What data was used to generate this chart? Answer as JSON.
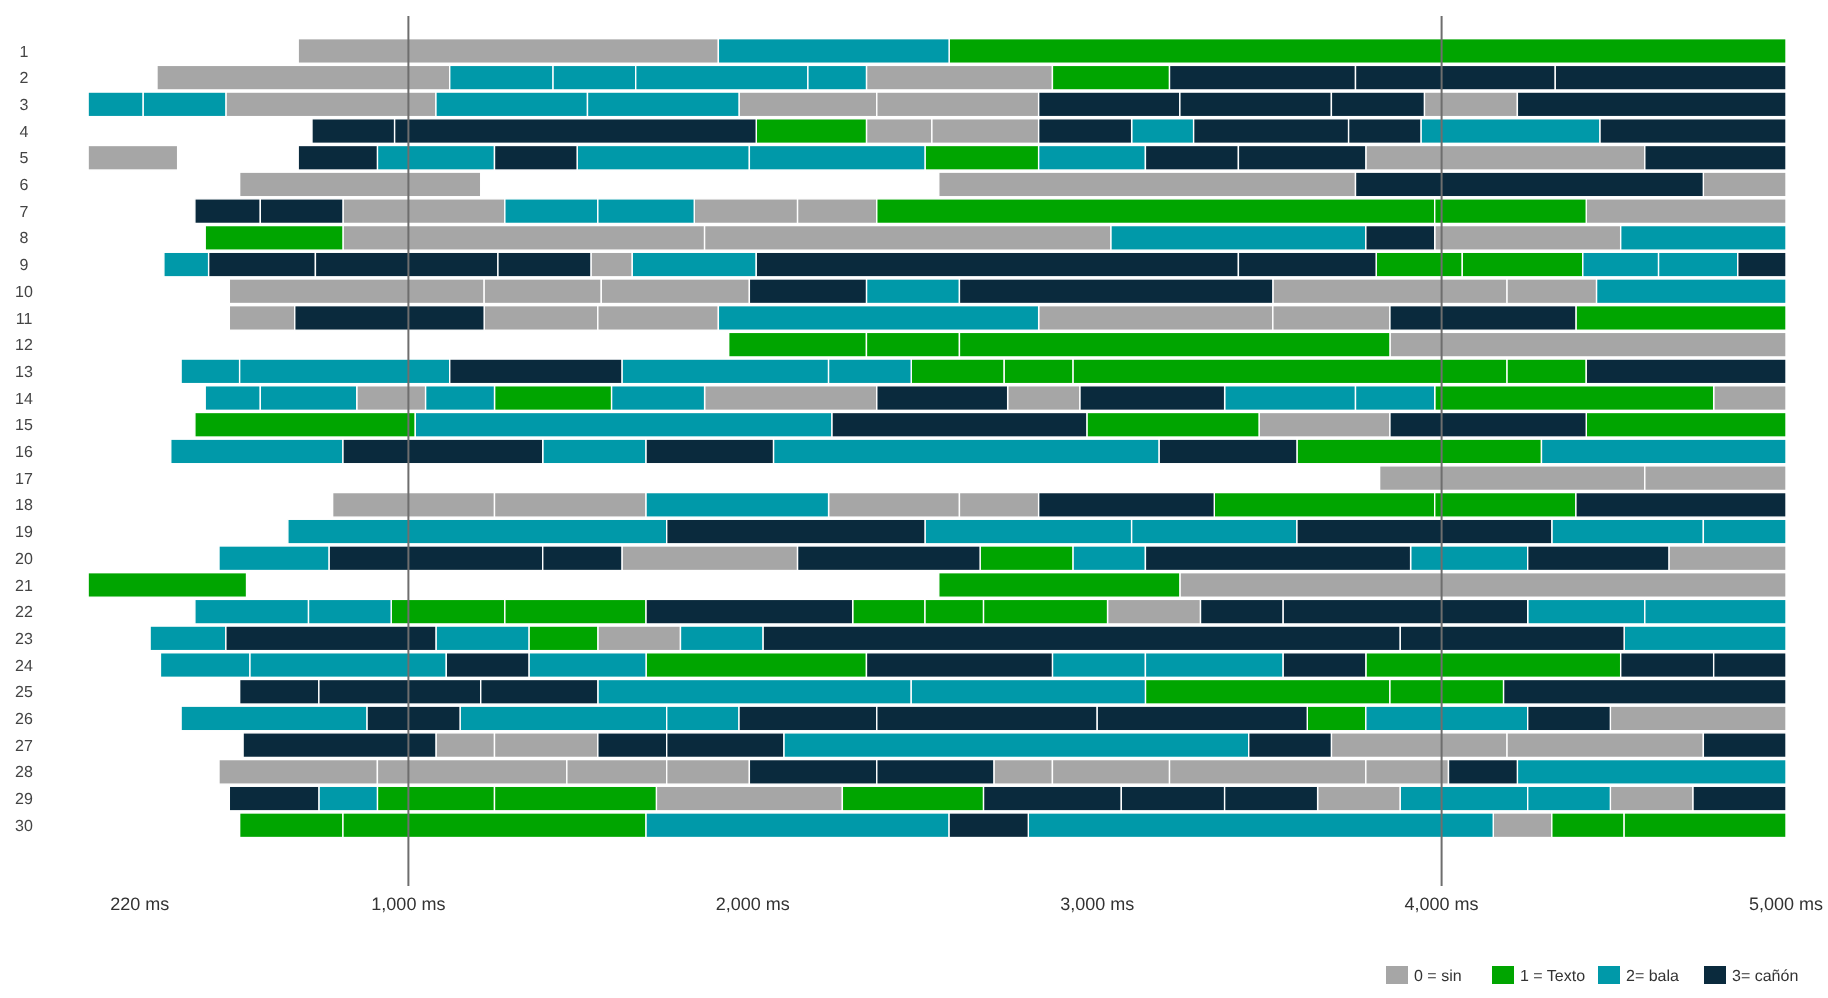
{
  "chart_data": {
    "type": "bar",
    "orientation": "horizontal",
    "categories": [
      "1",
      "2",
      "3",
      "4",
      "5",
      "6",
      "7",
      "8",
      "9",
      "10",
      "11",
      "12",
      "13",
      "14",
      "15",
      "16",
      "17",
      "18",
      "19",
      "20",
      "21",
      "22",
      "23",
      "24",
      "25",
      "26",
      "27",
      "28",
      "29",
      "30"
    ],
    "xlim": [
      0,
      5000
    ],
    "xticks": [
      {
        "value": 220,
        "label": "220 ms"
      },
      {
        "value": 1000,
        "label": "1,000 ms"
      },
      {
        "value": 2000,
        "label": "2,000 ms"
      },
      {
        "value": 3000,
        "label": "3,000 ms"
      },
      {
        "value": 4000,
        "label": "4,000 ms"
      },
      {
        "value": 5000,
        "label": "5,000 ms"
      }
    ],
    "legend": "bottom right",
    "ref_lines": [
      {
        "axis": "x",
        "value": 1000,
        "color": "#6e6e6e"
      },
      {
        "axis": "x",
        "value": 4000,
        "color": "#6e6e6e"
      }
    ],
    "series": [
      {
        "name": "0 = sin",
        "color": "#a6a6a6",
        "base": [
          680,
          270,
          470,
          2330,
          70,
          510,
          810,
          810,
          1530,
          480,
          480,
          3850,
          null,
          850,
          3470,
          null,
          3820,
          780,
          null,
          1620,
          3240,
          3030,
          1550,
          null,
          null,
          4490,
          1080,
          450,
          1720,
          4150
        ],
        "values": [
          1220,
          850,
          610,
          190,
          260,
          700,
          470,
          1050,
          120,
          740,
          190,
          1150,
          null,
          200,
          380,
          null,
          770,
          470,
          null,
          510,
          1760,
          270,
          240,
          null,
          null,
          510,
          170,
          460,
          540,
          170
        ]
      },
      {
        "color": "#a6a6a6",
        "base": [
          null,
          2330,
          1960,
          2520,
          3780,
          2540,
          1830,
          1860,
          null,
          1220,
          1220,
          null,
          null,
          1860,
          null,
          null,
          4590,
          1250,
          null,
          4660,
          null,
          null,
          null,
          null,
          null,
          null,
          1250,
          910,
          3640,
          null
        ],
        "values": [
          null,
          540,
          400,
          310,
          810,
          1210,
          300,
          1180,
          null,
          340,
          330,
          null,
          null,
          500,
          null,
          null,
          410,
          440,
          null,
          340,
          null,
          null,
          null,
          null,
          null,
          null,
          300,
          550,
          240,
          null
        ]
      },
      {
        "color": "#a6a6a6",
        "base": [
          null,
          null,
          2360,
          null,
          null,
          4760,
          2130,
          3980,
          null,
          1560,
          1550,
          null,
          null,
          2740,
          null,
          null,
          null,
          2220,
          null,
          null,
          null,
          null,
          null,
          null,
          null,
          null,
          3680,
          1460,
          4490,
          null
        ],
        "values": [
          null,
          null,
          470,
          null,
          null,
          240,
          230,
          540,
          null,
          430,
          350,
          null,
          null,
          210,
          null,
          null,
          null,
          380,
          null,
          null,
          null,
          null,
          null,
          null,
          null,
          null,
          510,
          290,
          240,
          null
        ]
      },
      {
        "color": "#a6a6a6",
        "base": [
          null,
          null,
          3950,
          null,
          null,
          null,
          4420,
          null,
          null,
          3510,
          2830,
          null,
          null,
          4790,
          null,
          null,
          null,
          2600,
          null,
          null,
          null,
          null,
          null,
          null,
          null,
          null,
          4190,
          1750,
          null,
          null
        ],
        "values": [
          null,
          null,
          270,
          null,
          null,
          null,
          580,
          null,
          null,
          680,
          680,
          null,
          null,
          210,
          null,
          null,
          null,
          230,
          null,
          null,
          null,
          null,
          null,
          null,
          null,
          null,
          570,
          240,
          null,
          null
        ]
      },
      {
        "color": "#a6a6a6",
        "base": [
          null,
          null,
          null,
          null,
          null,
          null,
          null,
          null,
          null,
          4190,
          3510,
          null,
          null,
          null,
          null,
          null,
          null,
          null,
          null,
          null,
          null,
          null,
          null,
          null,
          null,
          null,
          null,
          2700,
          null,
          null
        ],
        "values": [
          null,
          null,
          null,
          null,
          null,
          null,
          null,
          null,
          null,
          260,
          340,
          null,
          null,
          null,
          null,
          null,
          null,
          null,
          null,
          null,
          null,
          null,
          null,
          null,
          null,
          null,
          null,
          170,
          null,
          null
        ]
      },
      {
        "color": "#a6a6a6",
        "base": [
          null,
          null,
          null,
          null,
          null,
          null,
          null,
          null,
          null,
          null,
          null,
          null,
          null,
          null,
          null,
          null,
          null,
          null,
          null,
          null,
          null,
          null,
          null,
          null,
          null,
          null,
          null,
          2870,
          null,
          null
        ],
        "values": [
          null,
          null,
          null,
          null,
          null,
          null,
          null,
          null,
          null,
          null,
          null,
          null,
          null,
          null,
          null,
          null,
          null,
          null,
          null,
          null,
          null,
          null,
          null,
          null,
          null,
          null,
          null,
          340,
          null,
          null
        ]
      },
      {
        "color": "#a6a6a6",
        "base": [
          null,
          null,
          null,
          null,
          null,
          null,
          null,
          null,
          null,
          null,
          null,
          null,
          null,
          null,
          null,
          null,
          null,
          null,
          null,
          null,
          null,
          null,
          null,
          null,
          null,
          null,
          null,
          3210,
          null,
          null
        ],
        "values": [
          null,
          null,
          null,
          null,
          null,
          null,
          null,
          null,
          null,
          null,
          null,
          null,
          null,
          null,
          null,
          null,
          null,
          null,
          null,
          null,
          null,
          null,
          null,
          null,
          null,
          null,
          null,
          570,
          null,
          null
        ]
      },
      {
        "color": "#a6a6a6",
        "base": [
          null,
          null,
          null,
          null,
          null,
          null,
          null,
          null,
          null,
          null,
          null,
          null,
          null,
          null,
          null,
          null,
          null,
          null,
          null,
          null,
          null,
          null,
          null,
          null,
          null,
          null,
          null,
          3780,
          null,
          null
        ],
        "values": [
          null,
          null,
          null,
          null,
          null,
          null,
          null,
          null,
          null,
          null,
          null,
          null,
          null,
          null,
          null,
          null,
          null,
          null,
          null,
          null,
          null,
          null,
          null,
          null,
          null,
          null,
          null,
          240,
          null,
          null
        ]
      },
      {
        "name": "1 = Texto",
        "color": "#00a500",
        "base": [
          2570,
          2870,
          null,
          2010,
          2500,
          null,
          2360,
          410,
          3810,
          null,
          4390,
          1930,
          2460,
          1250,
          380,
          3580,
          null,
          3340,
          null,
          2660,
          70,
          950,
          1350,
          1690,
          3140,
          3610,
          null,
          null,
          910,
          510
        ],
        "values": [
          2430,
          340,
          null,
          320,
          330,
          null,
          1620,
          400,
          250,
          null,
          610,
          400,
          270,
          340,
          640,
          710,
          null,
          640,
          null,
          270,
          460,
          330,
          200,
          640,
          710,
          170,
          null,
          null,
          340,
          300
        ]
      },
      {
        "color": "#00a500",
        "base": [
          null,
          null,
          null,
          null,
          null,
          null,
          3980,
          null,
          4060,
          null,
          null,
          2330,
          2730,
          3980,
          2970,
          null,
          null,
          3980,
          null,
          null,
          2540,
          1280,
          null,
          3780,
          3850,
          null,
          null,
          null,
          1250,
          810
        ],
        "values": [
          null,
          null,
          null,
          null,
          null,
          null,
          440,
          null,
          350,
          null,
          null,
          270,
          200,
          810,
          500,
          null,
          null,
          410,
          null,
          null,
          700,
          410,
          null,
          740,
          330,
          null,
          null,
          null,
          470,
          880
        ]
      },
      {
        "color": "#00a500",
        "base": [
          null,
          null,
          null,
          null,
          null,
          null,
          null,
          null,
          null,
          null,
          null,
          2600,
          2930,
          null,
          4420,
          null,
          null,
          null,
          null,
          null,
          null,
          2290,
          null,
          null,
          null,
          null,
          null,
          null,
          2260,
          4320
        ],
        "values": [
          null,
          null,
          null,
          null,
          null,
          null,
          null,
          null,
          null,
          null,
          null,
          1250,
          1260,
          null,
          580,
          null,
          null,
          null,
          null,
          null,
          null,
          210,
          null,
          null,
          null,
          null,
          null,
          null,
          410,
          210
        ]
      },
      {
        "color": "#00a500",
        "base": [
          null,
          null,
          null,
          null,
          null,
          null,
          null,
          null,
          null,
          null,
          null,
          null,
          4190,
          null,
          null,
          null,
          null,
          null,
          null,
          null,
          null,
          2500,
          null,
          null,
          null,
          null,
          null,
          null,
          null,
          4530
        ],
        "values": [
          null,
          null,
          null,
          null,
          null,
          null,
          null,
          null,
          null,
          null,
          null,
          null,
          230,
          null,
          null,
          null,
          null,
          null,
          null,
          null,
          null,
          170,
          null,
          null,
          null,
          null,
          null,
          null,
          null,
          470
        ]
      },
      {
        "color": "#00a500",
        "base": [
          null,
          null,
          null,
          null,
          null,
          null,
          null,
          null,
          null,
          null,
          null,
          null,
          null,
          null,
          null,
          null,
          null,
          null,
          null,
          null,
          null,
          2670,
          null,
          null,
          null,
          null,
          null,
          null,
          null,
          null
        ],
        "values": [
          null,
          null,
          null,
          null,
          null,
          null,
          null,
          null,
          null,
          null,
          null,
          null,
          null,
          null,
          null,
          null,
          null,
          null,
          null,
          null,
          null,
          360,
          null,
          null,
          null,
          null,
          null,
          null,
          null,
          null
        ]
      },
      {
        "name": "2= bala",
        "color": "#0099a9",
        "base": [
          1900,
          1120,
          70,
          3100,
          910,
          null,
          1280,
          3040,
          290,
          2330,
          1900,
          null,
          340,
          410,
          1020,
          310,
          null,
          1690,
          650,
          450,
          null,
          380,
          250,
          280,
          1550,
          340,
          2090,
          4220,
          740,
          1690
        ],
        "values": [
          670,
          300,
          160,
          180,
          340,
          null,
          270,
          740,
          130,
          270,
          930,
          null,
          170,
          160,
          1210,
          500,
          null,
          530,
          1100,
          320,
          null,
          330,
          220,
          260,
          910,
          540,
          1350,
          780,
          170,
          880
        ]
      },
      {
        "color": "#0099a9",
        "base": [
          null,
          1420,
          230,
          3940,
          1490,
          null,
          1550,
          4520,
          1650,
          4450,
          null,
          null,
          510,
          570,
          null,
          1390,
          null,
          null,
          2500,
          2930,
          null,
          710,
          1080,
          540,
          2460,
          1150,
          null,
          null,
          3880,
          2800
        ],
        "values": [
          null,
          240,
          240,
          520,
          500,
          null,
          280,
          480,
          360,
          550,
          null,
          null,
          610,
          280,
          null,
          300,
          null,
          null,
          600,
          210,
          null,
          240,
          270,
          570,
          680,
          600,
          null,
          null,
          370,
          1350
        ]
      },
      {
        "color": "#0099a9",
        "base": [
          null,
          1660,
          1080,
          null,
          1990,
          null,
          null,
          null,
          4410,
          null,
          null,
          null,
          1620,
          1050,
          null,
          2060,
          null,
          null,
          3100,
          3910,
          null,
          4250,
          1790,
          1350,
          null,
          1750,
          null,
          null,
          4250,
          null
        ],
        "values": [
          null,
          500,
          440,
          null,
          510,
          null,
          null,
          null,
          220,
          null,
          null,
          null,
          600,
          200,
          null,
          1120,
          null,
          null,
          480,
          340,
          null,
          340,
          240,
          340,
          null,
          210,
          null,
          null,
          240,
          null
        ]
      },
      {
        "color": "#0099a9",
        "base": [
          null,
          2160,
          1520,
          null,
          2830,
          null,
          null,
          null,
          4630,
          null,
          null,
          null,
          2220,
          1590,
          null,
          4290,
          null,
          null,
          4320,
          null,
          null,
          4590,
          4530,
          2870,
          null,
          3780,
          null,
          null,
          null,
          null
        ],
        "values": [
          null,
          170,
          440,
          null,
          310,
          null,
          null,
          null,
          230,
          null,
          null,
          null,
          240,
          270,
          null,
          710,
          null,
          null,
          440,
          null,
          null,
          410,
          470,
          270,
          null,
          470,
          null,
          null,
          null,
          null
        ]
      },
      {
        "color": "#0099a9",
        "base": [
          null,
          null,
          null,
          null,
          null,
          null,
          null,
          null,
          null,
          null,
          null,
          null,
          null,
          3370,
          null,
          null,
          null,
          null,
          4760,
          null,
          null,
          null,
          null,
          3140,
          null,
          null,
          null,
          null,
          null,
          null
        ],
        "values": [
          null,
          null,
          null,
          null,
          null,
          null,
          null,
          null,
          null,
          null,
          null,
          null,
          null,
          380,
          null,
          null,
          null,
          null,
          240,
          null,
          null,
          null,
          null,
          400,
          null,
          null,
          null,
          null,
          null,
          null
        ]
      },
      {
        "color": "#0099a9",
        "base": [
          null,
          null,
          null,
          null,
          null,
          null,
          null,
          null,
          null,
          null,
          null,
          null,
          null,
          3750,
          null,
          null,
          null,
          null,
          null,
          null,
          null,
          null,
          null,
          null,
          null,
          null,
          null,
          null,
          null,
          null
        ],
        "values": [
          null,
          null,
          null,
          null,
          null,
          null,
          null,
          null,
          null,
          null,
          null,
          null,
          null,
          230,
          null,
          null,
          null,
          null,
          null,
          null,
          null,
          null,
          null,
          null,
          null,
          null,
          null,
          null,
          null,
          null
        ]
      },
      {
        "name": "3= cañón",
        "color": "#0a2a3d",
        "base": [
          null,
          3210,
          2830,
          720,
          680,
          3750,
          380,
          3780,
          420,
          1990,
          670,
          null,
          1120,
          2360,
          2230,
          810,
          null,
          2830,
          1750,
          770,
          null,
          1690,
          470,
          1110,
          510,
          880,
          520,
          1990,
          480,
          2570
        ],
        "values": [
          null,
          540,
          410,
          240,
          230,
          1010,
          190,
          200,
          310,
          340,
          550,
          null,
          500,
          380,
          740,
          580,
          null,
          510,
          750,
          620,
          null,
          600,
          610,
          240,
          230,
          270,
          560,
          370,
          260,
          230
        ]
      },
      {
        "color": "#0a2a3d",
        "base": [
          null,
          3750,
          3240,
          960,
          1250,
          null,
          570,
          null,
          730,
          2600,
          3850,
          null,
          4420,
          2950,
          3850,
          1690,
          null,
          4390,
          3580,
          1390,
          null,
          3300,
          2030,
          2330,
          740,
          1960,
          1550,
          2360,
          2670,
          null
        ],
        "values": [
          null,
          580,
          440,
          1050,
          240,
          null,
          240,
          null,
          530,
          910,
          540,
          null,
          580,
          420,
          570,
          370,
          null,
          610,
          740,
          230,
          null,
          240,
          1850,
          540,
          470,
          400,
          200,
          340,
          400,
          null
        ]
      },
      {
        "color": "#0a2a3d",
        "base": [
          null,
          4330,
          3680,
          2830,
          3140,
          null,
          null,
          null,
          1260,
          null,
          null,
          null,
          null,
          null,
          null,
          3180,
          null,
          null,
          null,
          2130,
          null,
          3540,
          3880,
          3540,
          1210,
          2360,
          1750,
          4020,
          3070,
          null
        ],
        "values": [
          null,
          670,
          270,
          270,
          270,
          null,
          null,
          null,
          270,
          null,
          null,
          null,
          null,
          null,
          null,
          400,
          null,
          null,
          null,
          530,
          null,
          710,
          650,
          240,
          340,
          640,
          340,
          200,
          300,
          null
        ]
      },
      {
        "color": "#0a2a3d",
        "base": [
          null,
          null,
          4220,
          3280,
          3410,
          null,
          null,
          null,
          2010,
          null,
          null,
          null,
          null,
          null,
          null,
          null,
          null,
          null,
          null,
          3140,
          null,
          null,
          null,
          4520,
          4180,
          3000,
          3440,
          null,
          3370,
          null
        ],
        "values": [
          null,
          null,
          780,
          450,
          370,
          null,
          null,
          null,
          1400,
          null,
          null,
          null,
          null,
          null,
          null,
          null,
          null,
          null,
          null,
          770,
          null,
          null,
          null,
          270,
          820,
          610,
          240,
          null,
          270,
          null
        ]
      },
      {
        "color": "#0a2a3d",
        "base": [
          null,
          null,
          null,
          3730,
          4590,
          null,
          null,
          null,
          3410,
          null,
          null,
          null,
          null,
          null,
          null,
          null,
          null,
          null,
          null,
          4250,
          null,
          null,
          null,
          4790,
          null,
          4250,
          4760,
          null,
          4730,
          null
        ],
        "values": [
          null,
          null,
          null,
          210,
          410,
          null,
          null,
          null,
          400,
          null,
          null,
          null,
          null,
          null,
          null,
          null,
          null,
          null,
          null,
          410,
          null,
          null,
          null,
          210,
          null,
          240,
          240,
          null,
          270,
          null
        ]
      },
      {
        "color": "#0a2a3d",
        "base": [
          null,
          null,
          null,
          4460,
          null,
          null,
          null,
          null,
          4860,
          null,
          null,
          null,
          null,
          null,
          null,
          null,
          null,
          null,
          null,
          null,
          null,
          null,
          null,
          null,
          null,
          null,
          null,
          null,
          null,
          null
        ],
        "values": [
          null,
          null,
          null,
          540,
          null,
          null,
          null,
          null,
          140,
          null,
          null,
          null,
          null,
          null,
          null,
          null,
          null,
          null,
          null,
          null,
          null,
          null,
          null,
          null,
          null,
          null,
          null,
          null,
          null,
          null
        ]
      }
    ]
  }
}
